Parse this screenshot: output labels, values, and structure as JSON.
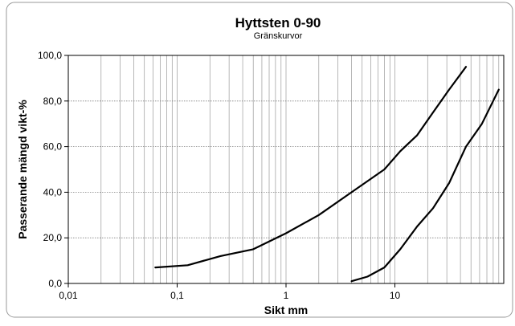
{
  "chart_data": {
    "type": "line",
    "title": "Hyttsten 0-90",
    "subtitle": "Gränskurvor",
    "xlabel": "Sikt mm",
    "ylabel": "Passerande mängd vikt-%",
    "x_scale": "log",
    "xlim": [
      0.01,
      100
    ],
    "ylim": [
      0,
      100
    ],
    "x_ticks": [
      {
        "value": 0.01,
        "label": "0,01"
      },
      {
        "value": 0.1,
        "label": "0,1"
      },
      {
        "value": 1,
        "label": "1"
      },
      {
        "value": 10,
        "label": "10"
      }
    ],
    "y_ticks": [
      {
        "value": 0,
        "label": "0,0"
      },
      {
        "value": 20,
        "label": "20,0"
      },
      {
        "value": 40,
        "label": "40,0"
      },
      {
        "value": 60,
        "label": "60,0"
      },
      {
        "value": 80,
        "label": "80,0"
      },
      {
        "value": 100,
        "label": "100,0"
      }
    ],
    "grid": {
      "x_log_minor": true,
      "y_major": true,
      "y_style": "dotted"
    },
    "series": [
      {
        "color": "#000000",
        "x": [
          0.063,
          0.125,
          0.25,
          0.5,
          1,
          2,
          4,
          8,
          11.2,
          16,
          22.4,
          31.5,
          45
        ],
        "y": [
          7,
          8,
          12,
          15,
          22,
          30,
          40,
          50,
          58,
          65,
          75,
          85,
          95
        ]
      },
      {
        "color": "#000000",
        "x": [
          4,
          5.6,
          8,
          11.2,
          16,
          22.4,
          31.5,
          45,
          63,
          90
        ],
        "y": [
          1,
          3,
          7,
          15,
          25,
          33,
          44,
          60,
          70,
          85
        ]
      }
    ]
  }
}
